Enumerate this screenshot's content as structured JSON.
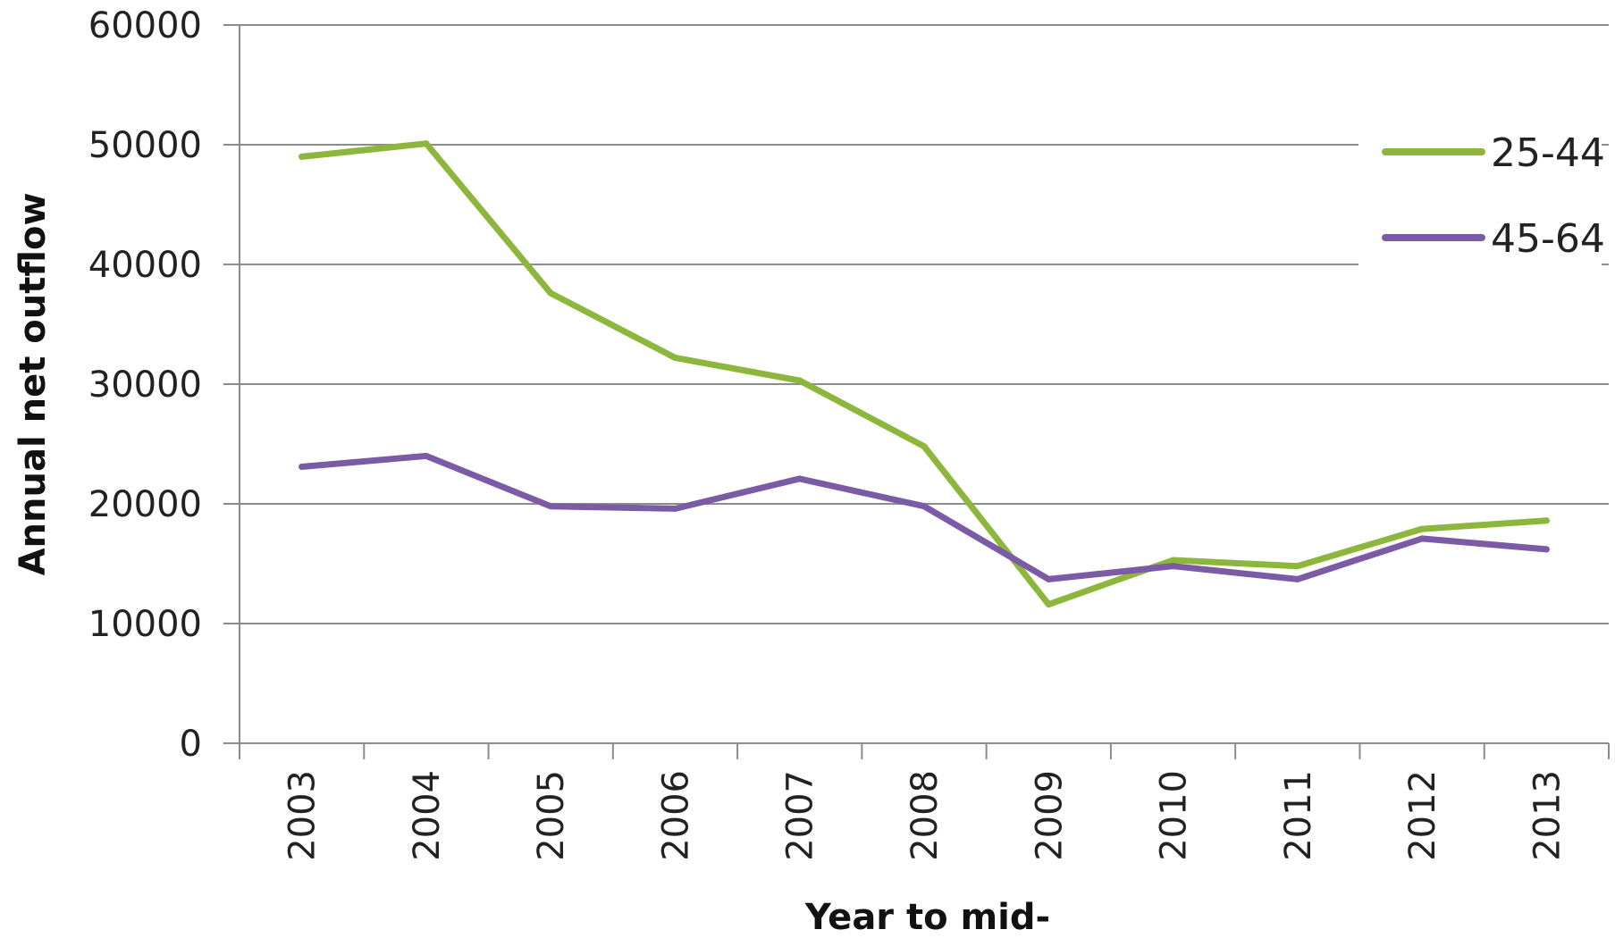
{
  "chart_data": {
    "type": "line",
    "title": "",
    "xlabel": "Year to mid-",
    "ylabel": "Annual net outflow",
    "x": [
      "2003",
      "2004",
      "2005",
      "2006",
      "2007",
      "2008",
      "2009",
      "2010",
      "2011",
      "2012",
      "2013"
    ],
    "ylim": [
      0,
      60000
    ],
    "yticks": [
      "0",
      "10000",
      "20000",
      "30000",
      "40000",
      "50000",
      "60000"
    ],
    "grid": true,
    "legend_position": "right",
    "series": [
      {
        "name": "25-44",
        "color": "#8DB63C",
        "values": [
          49000,
          50100,
          37600,
          32200,
          30300,
          24800,
          11600,
          15300,
          14800,
          17900,
          18600
        ]
      },
      {
        "name": "45-64",
        "color": "#7C5BA6",
        "values": [
          23100,
          24000,
          19800,
          19600,
          22100,
          19800,
          13700,
          14800,
          13700,
          17100,
          16200
        ]
      }
    ]
  }
}
